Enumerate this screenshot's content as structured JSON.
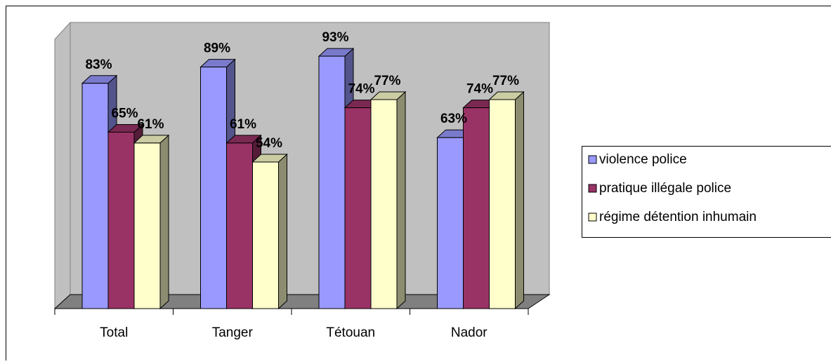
{
  "chart_data": {
    "type": "bar",
    "categories": [
      "Total",
      "Tanger",
      "Tétouan",
      "Nador"
    ],
    "series": [
      {
        "name": "violence police",
        "color": "#9999ff",
        "values": [
          83,
          89,
          93,
          63
        ],
        "value_labels": [
          "83%",
          "89%",
          "93%",
          "63%"
        ]
      },
      {
        "name": "pratique illégale police",
        "color": "#993366",
        "values": [
          65,
          61,
          74,
          74
        ],
        "value_labels": [
          "65%",
          "61%",
          "74%",
          "74%"
        ]
      },
      {
        "name": "régime détention inhumain",
        "color": "#ffffcc",
        "values": [
          61,
          54,
          77,
          77
        ],
        "value_labels": [
          "61%",
          "54%",
          "77%",
          "77%"
        ]
      }
    ],
    "ylim": [
      0,
      100
    ],
    "legend": "right"
  }
}
